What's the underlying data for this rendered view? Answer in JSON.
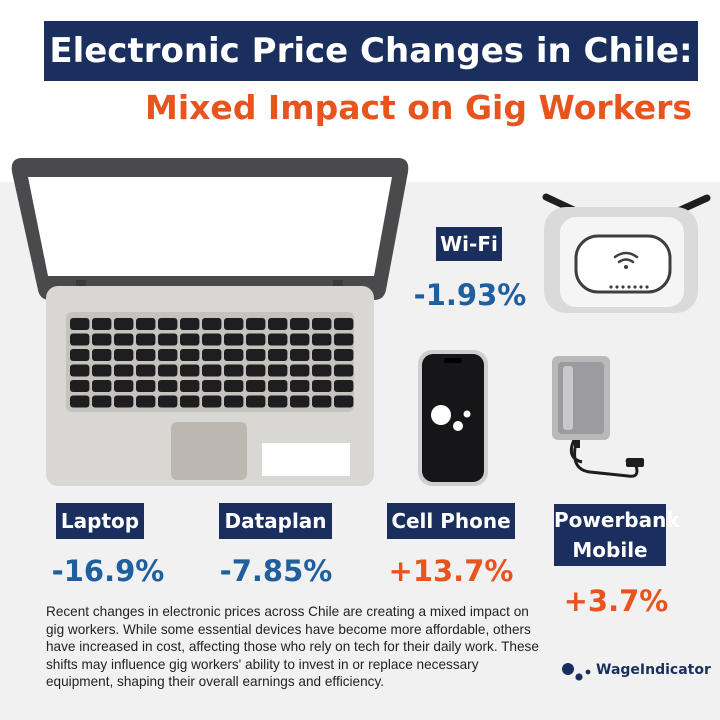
{
  "header": {
    "title": "Electronic Price Changes in Chile:",
    "subtitle": "Mixed Impact on Gig Workers"
  },
  "items": [
    {
      "label": "Laptop",
      "change": "-16.9%",
      "direction": "decrease",
      "icon": "laptop-icon"
    },
    {
      "label": "Dataplan",
      "change": "-7.85%",
      "direction": "decrease",
      "icon": "data-icon"
    },
    {
      "label": "Cell Phone",
      "change": "+13.7%",
      "direction": "increase",
      "icon": "phone-icon"
    },
    {
      "label_line1": "Powerbank",
      "label_line2": "Mobile",
      "change": "+3.7%",
      "direction": "increase",
      "icon": "powerbank-icon"
    },
    {
      "label": "Wi-Fi",
      "change": "-1.93%",
      "direction": "decrease",
      "icon": "router-icon"
    }
  ],
  "description": "Recent changes in electronic prices across Chile are creating a mixed impact on gig workers. While some essential devices have become more affordable, others have increased in cost, affecting those who rely on tech for their daily work. These shifts may influence gig workers' ability to invest in or replace necessary equipment, shaping their overall earnings and efficiency.",
  "logo": {
    "text": "WageIndicator"
  },
  "colors": {
    "navy": "#1b2f5e",
    "orange": "#e8541e",
    "blue": "#1f5f9e",
    "background": "#f1f1f2"
  }
}
